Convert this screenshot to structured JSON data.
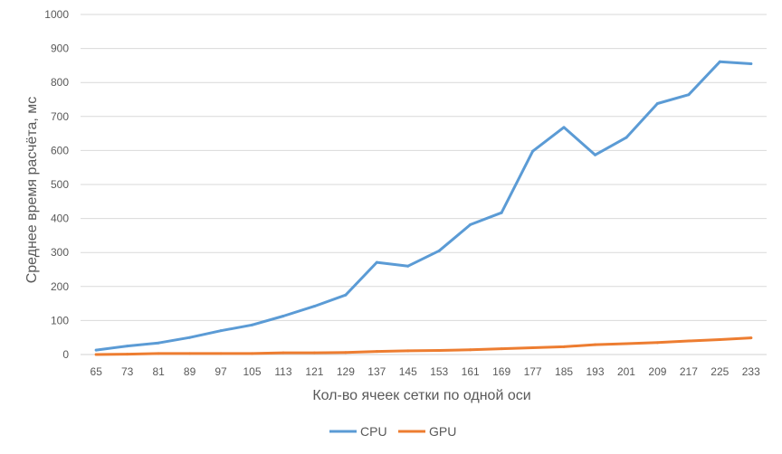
{
  "chart_data": {
    "type": "line",
    "title": "",
    "xlabel": "Кол-во ячеек сетки по одной оси",
    "ylabel": "Среднее время расчёта, мс",
    "ylim": [
      0,
      1000
    ],
    "yticks": [
      0,
      100,
      200,
      300,
      400,
      500,
      600,
      700,
      800,
      900,
      1000
    ],
    "grid": "horizontal",
    "legend": "bottom",
    "categories": [
      "65",
      "73",
      "81",
      "89",
      "97",
      "105",
      "113",
      "121",
      "129",
      "137",
      "145",
      "153",
      "161",
      "169",
      "177",
      "185",
      "193",
      "201",
      "209",
      "217",
      "225",
      "233"
    ],
    "series": [
      {
        "name": "CPU",
        "color": "#5B9BD5",
        "values": [
          13,
          25,
          34,
          50,
          70,
          87,
          113,
          142,
          175,
          271,
          260,
          305,
          382,
          417,
          598,
          668,
          587,
          638,
          738,
          764,
          861,
          855
        ]
      },
      {
        "name": "GPU",
        "color": "#ED7D31",
        "values": [
          0,
          1,
          3,
          3,
          3,
          3,
          5,
          5,
          6,
          9,
          11,
          12,
          14,
          17,
          20,
          23,
          29,
          32,
          35,
          40,
          44,
          49
        ]
      }
    ]
  }
}
